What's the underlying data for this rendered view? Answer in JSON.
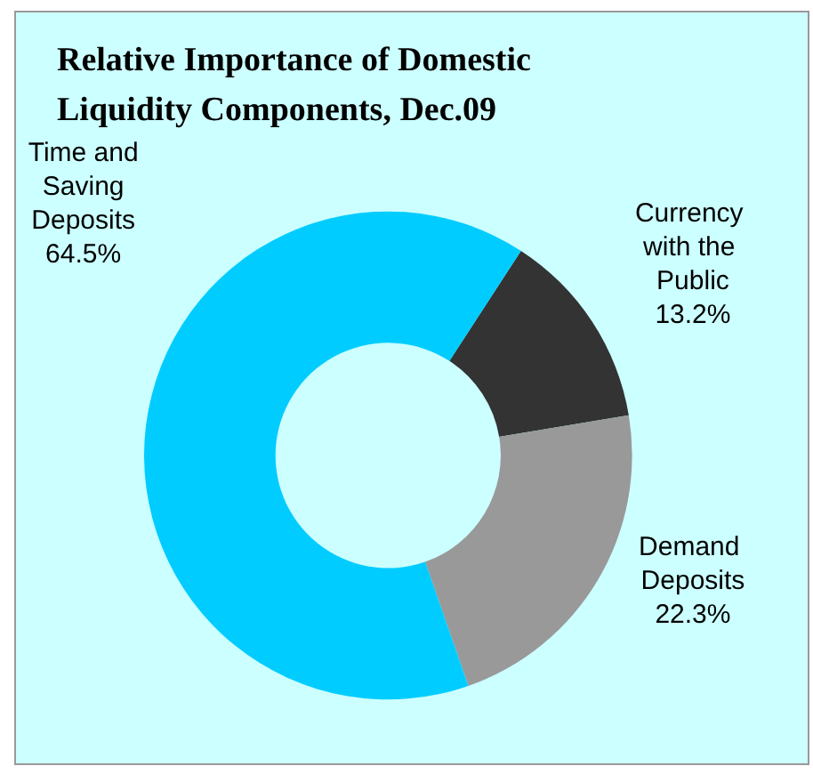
{
  "chart_data": {
    "type": "donut",
    "title": "Relative Importance of Domestic Liquidity Components, Dec.09",
    "categories": [
      "Currency with the Public",
      "Demand Deposits",
      "Time and Saving Deposits"
    ],
    "values": [
      13.2,
      22.3,
      64.5
    ],
    "value_labels": [
      "13.2%",
      "22.3%",
      "64.5%"
    ],
    "colors": [
      "#333333",
      "#999999",
      "#00ccff"
    ],
    "legend": false
  }
}
